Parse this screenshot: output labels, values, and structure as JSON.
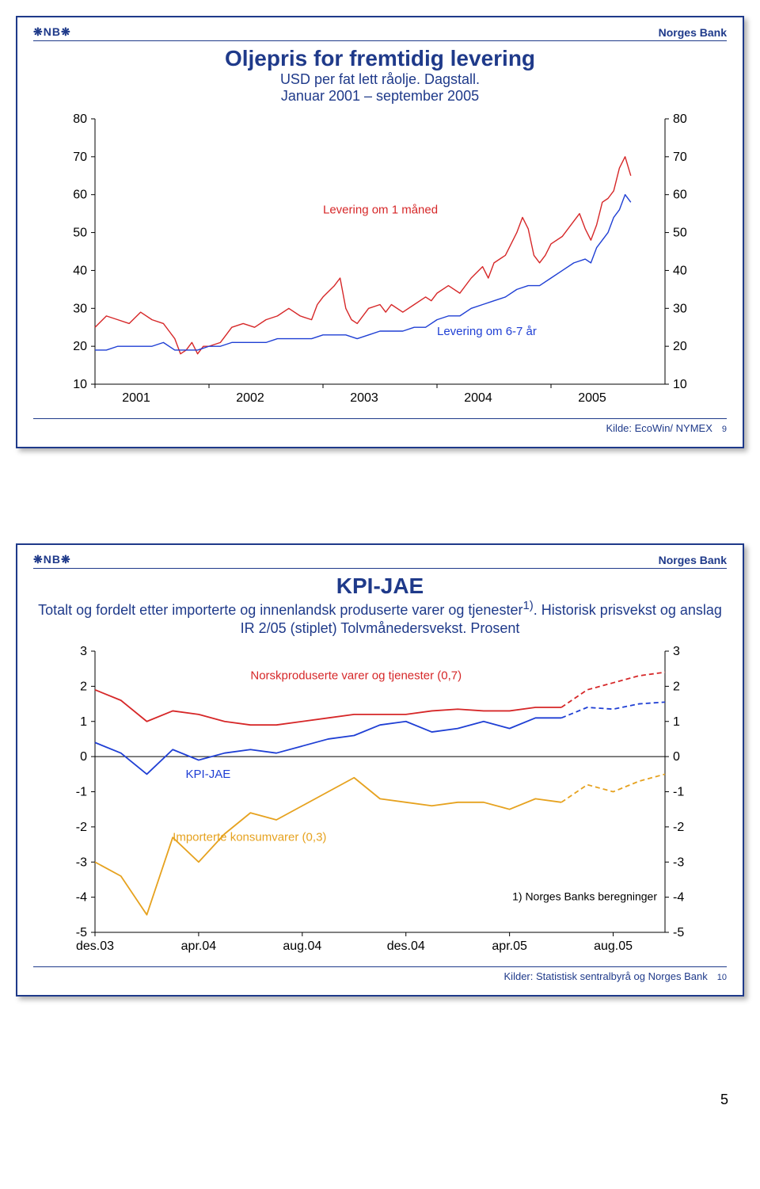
{
  "brand": {
    "logo": "❋NB❋",
    "name": "Norges Bank"
  },
  "page_number": "5",
  "panel1": {
    "title": "Oljepris for fremtidig levering",
    "subtitle": "USD per fat lett råolje. Dagstall.\nJanuar 2001 – september 2005",
    "kilde": "Kilde: EcoWin/ NYMEX",
    "slide_num": "9",
    "chart": {
      "type": "line",
      "y_ticks": [
        10,
        20,
        30,
        40,
        50,
        60,
        70,
        80
      ],
      "ylim": [
        10,
        80
      ],
      "x_labels": [
        "2001",
        "2002",
        "2003",
        "2004",
        "2005"
      ],
      "x_range": [
        2001,
        2006
      ],
      "series": [
        {
          "name": "spot",
          "label": "Levering om 1 måned",
          "label_pos": {
            "x": 2003.0,
            "y": 55
          },
          "color": "#d62728",
          "width": 1.4,
          "points": [
            [
              2001.0,
              25
            ],
            [
              2001.1,
              28
            ],
            [
              2001.2,
              27
            ],
            [
              2001.3,
              26
            ],
            [
              2001.4,
              29
            ],
            [
              2001.5,
              27
            ],
            [
              2001.6,
              26
            ],
            [
              2001.65,
              24
            ],
            [
              2001.7,
              22
            ],
            [
              2001.75,
              18
            ],
            [
              2001.8,
              19
            ],
            [
              2001.85,
              21
            ],
            [
              2001.9,
              18
            ],
            [
              2001.95,
              20
            ],
            [
              2002.0,
              20
            ],
            [
              2002.1,
              21
            ],
            [
              2002.15,
              23
            ],
            [
              2002.2,
              25
            ],
            [
              2002.3,
              26
            ],
            [
              2002.4,
              25
            ],
            [
              2002.5,
              27
            ],
            [
              2002.6,
              28
            ],
            [
              2002.7,
              30
            ],
            [
              2002.8,
              28
            ],
            [
              2002.9,
              27
            ],
            [
              2002.95,
              31
            ],
            [
              2003.0,
              33
            ],
            [
              2003.1,
              36
            ],
            [
              2003.15,
              38
            ],
            [
              2003.2,
              30
            ],
            [
              2003.25,
              27
            ],
            [
              2003.3,
              26
            ],
            [
              2003.4,
              30
            ],
            [
              2003.5,
              31
            ],
            [
              2003.55,
              29
            ],
            [
              2003.6,
              31
            ],
            [
              2003.7,
              29
            ],
            [
              2003.8,
              31
            ],
            [
              2003.9,
              33
            ],
            [
              2003.95,
              32
            ],
            [
              2004.0,
              34
            ],
            [
              2004.1,
              36
            ],
            [
              2004.2,
              34
            ],
            [
              2004.3,
              38
            ],
            [
              2004.4,
              41
            ],
            [
              2004.45,
              38
            ],
            [
              2004.5,
              42
            ],
            [
              2004.6,
              44
            ],
            [
              2004.65,
              47
            ],
            [
              2004.7,
              50
            ],
            [
              2004.75,
              54
            ],
            [
              2004.8,
              51
            ],
            [
              2004.85,
              44
            ],
            [
              2004.9,
              42
            ],
            [
              2004.95,
              44
            ],
            [
              2005.0,
              47
            ],
            [
              2005.1,
              49
            ],
            [
              2005.2,
              53
            ],
            [
              2005.25,
              55
            ],
            [
              2005.3,
              51
            ],
            [
              2005.35,
              48
            ],
            [
              2005.4,
              52
            ],
            [
              2005.45,
              58
            ],
            [
              2005.5,
              59
            ],
            [
              2005.55,
              61
            ],
            [
              2005.6,
              67
            ],
            [
              2005.65,
              70
            ],
            [
              2005.7,
              65
            ]
          ]
        },
        {
          "name": "futures",
          "label": "Levering om 6-7 år",
          "label_pos": {
            "x": 2004.0,
            "y": 23
          },
          "color": "#1f3fd4",
          "width": 1.4,
          "points": [
            [
              2001.0,
              19
            ],
            [
              2001.1,
              19
            ],
            [
              2001.2,
              20
            ],
            [
              2001.3,
              20
            ],
            [
              2001.4,
              20
            ],
            [
              2001.5,
              20
            ],
            [
              2001.6,
              21
            ],
            [
              2001.7,
              19
            ],
            [
              2001.8,
              19
            ],
            [
              2001.9,
              19
            ],
            [
              2002.0,
              20
            ],
            [
              2002.1,
              20
            ],
            [
              2002.2,
              21
            ],
            [
              2002.3,
              21
            ],
            [
              2002.4,
              21
            ],
            [
              2002.5,
              21
            ],
            [
              2002.6,
              22
            ],
            [
              2002.7,
              22
            ],
            [
              2002.8,
              22
            ],
            [
              2002.9,
              22
            ],
            [
              2003.0,
              23
            ],
            [
              2003.1,
              23
            ],
            [
              2003.2,
              23
            ],
            [
              2003.3,
              22
            ],
            [
              2003.4,
              23
            ],
            [
              2003.5,
              24
            ],
            [
              2003.6,
              24
            ],
            [
              2003.7,
              24
            ],
            [
              2003.8,
              25
            ],
            [
              2003.9,
              25
            ],
            [
              2004.0,
              27
            ],
            [
              2004.1,
              28
            ],
            [
              2004.2,
              28
            ],
            [
              2004.3,
              30
            ],
            [
              2004.4,
              31
            ],
            [
              2004.5,
              32
            ],
            [
              2004.6,
              33
            ],
            [
              2004.7,
              35
            ],
            [
              2004.8,
              36
            ],
            [
              2004.9,
              36
            ],
            [
              2005.0,
              38
            ],
            [
              2005.1,
              40
            ],
            [
              2005.2,
              42
            ],
            [
              2005.3,
              43
            ],
            [
              2005.35,
              42
            ],
            [
              2005.4,
              46
            ],
            [
              2005.5,
              50
            ],
            [
              2005.55,
              54
            ],
            [
              2005.6,
              56
            ],
            [
              2005.65,
              60
            ],
            [
              2005.7,
              58
            ]
          ]
        }
      ],
      "bg": "#ffffff",
      "axis_color": "#000000",
      "tick_font": 16
    }
  },
  "panel2": {
    "title": "KPI-JAE",
    "subtitle": "Totalt og fordelt etter importerte og innenlandsk produserte varer og tjenester<sup>1)</sup>. Historisk prisvekst og anslag IR 2/05 (stiplet) Tolvmånedersvekst. Prosent",
    "kilde": "Kilder: Statistisk sentralbyrå og Norges Bank",
    "slide_num": "10",
    "footnote": "1) Norges Banks beregninger",
    "chart": {
      "type": "line",
      "y_ticks": [
        -5,
        -4,
        -3,
        -2,
        -1,
        0,
        1,
        2,
        3
      ],
      "ylim": [
        -5,
        3
      ],
      "x_labels": [
        "des.03",
        "apr.04",
        "aug.04",
        "des.04",
        "apr.05",
        "aug.05"
      ],
      "x_positions": [
        0,
        4,
        8,
        12,
        16,
        20
      ],
      "x_range": [
        0,
        22
      ],
      "series": [
        {
          "name": "norsk",
          "label": "Norskproduserte varer og tjenester (0,7)",
          "label_pos": {
            "x": 6,
            "y": 2.2
          },
          "color": "#d62728",
          "width": 1.8,
          "dash": null,
          "points": [
            [
              0,
              1.9
            ],
            [
              1,
              1.6
            ],
            [
              2,
              1.0
            ],
            [
              3,
              1.3
            ],
            [
              4,
              1.2
            ],
            [
              5,
              1.0
            ],
            [
              6,
              0.9
            ],
            [
              7,
              0.9
            ],
            [
              8,
              1.0
            ],
            [
              9,
              1.1
            ],
            [
              10,
              1.2
            ],
            [
              11,
              1.2
            ],
            [
              12,
              1.2
            ],
            [
              13,
              1.3
            ],
            [
              14,
              1.35
            ],
            [
              15,
              1.3
            ],
            [
              16,
              1.3
            ],
            [
              17,
              1.4
            ],
            [
              18,
              1.4
            ]
          ]
        },
        {
          "name": "norsk-proj",
          "label": null,
          "color": "#d62728",
          "width": 1.8,
          "dash": "6,4",
          "points": [
            [
              18,
              1.4
            ],
            [
              19,
              1.9
            ],
            [
              20,
              2.1
            ],
            [
              21,
              2.3
            ],
            [
              22,
              2.4
            ]
          ]
        },
        {
          "name": "kpijae",
          "label": "KPI-JAE",
          "label_pos": {
            "x": 3.5,
            "y": -0.6
          },
          "color": "#1f3fd4",
          "width": 1.8,
          "dash": null,
          "points": [
            [
              0,
              0.4
            ],
            [
              1,
              0.1
            ],
            [
              2,
              -0.5
            ],
            [
              3,
              0.2
            ],
            [
              4,
              -0.1
            ],
            [
              5,
              0.1
            ],
            [
              6,
              0.2
            ],
            [
              7,
              0.1
            ],
            [
              8,
              0.3
            ],
            [
              9,
              0.5
            ],
            [
              10,
              0.6
            ],
            [
              11,
              0.9
            ],
            [
              12,
              1.0
            ],
            [
              13,
              0.7
            ],
            [
              14,
              0.8
            ],
            [
              15,
              1.0
            ],
            [
              16,
              0.8
            ],
            [
              17,
              1.1
            ],
            [
              18,
              1.1
            ]
          ]
        },
        {
          "name": "kpijae-proj",
          "label": null,
          "color": "#1f3fd4",
          "width": 1.8,
          "dash": "6,4",
          "points": [
            [
              18,
              1.1
            ],
            [
              19,
              1.4
            ],
            [
              20,
              1.35
            ],
            [
              21,
              1.5
            ],
            [
              22,
              1.55
            ]
          ]
        },
        {
          "name": "import",
          "label": "Importerte konsumvarer (0,3)",
          "label_pos": {
            "x": 3.0,
            "y": -2.4
          },
          "color": "#e6a21f",
          "width": 1.8,
          "dash": null,
          "points": [
            [
              0,
              -3.0
            ],
            [
              1,
              -3.4
            ],
            [
              2,
              -4.5
            ],
            [
              3,
              -2.3
            ],
            [
              4,
              -3.0
            ],
            [
              5,
              -2.2
            ],
            [
              6,
              -1.6
            ],
            [
              7,
              -1.8
            ],
            [
              8,
              -1.4
            ],
            [
              9,
              -1.0
            ],
            [
              10,
              -0.6
            ],
            [
              11,
              -1.2
            ],
            [
              12,
              -1.3
            ],
            [
              13,
              -1.4
            ],
            [
              14,
              -1.3
            ],
            [
              15,
              -1.3
            ],
            [
              16,
              -1.5
            ],
            [
              17,
              -1.2
            ],
            [
              18,
              -1.3
            ]
          ]
        },
        {
          "name": "import-proj",
          "label": null,
          "color": "#e6a21f",
          "width": 1.8,
          "dash": "6,4",
          "points": [
            [
              18,
              -1.3
            ],
            [
              19,
              -0.8
            ],
            [
              20,
              -1.0
            ],
            [
              21,
              -0.7
            ],
            [
              22,
              -0.5
            ]
          ]
        }
      ],
      "bg": "#ffffff",
      "axis_color": "#000000",
      "tick_font": 16
    }
  }
}
